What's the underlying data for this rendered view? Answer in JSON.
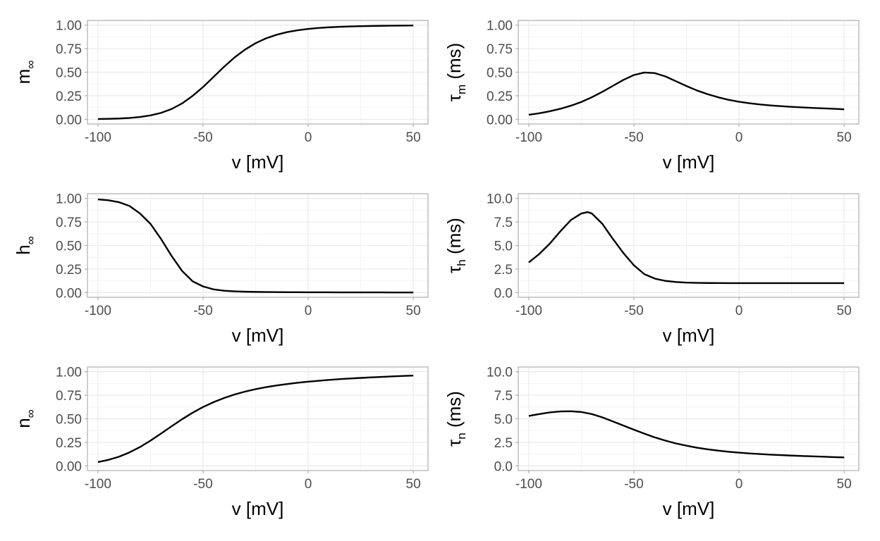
{
  "chart_data": [
    {
      "type": "line",
      "ylabel": {
        "main": "m",
        "sub": "∞",
        "unit": ""
      },
      "xlabel": "v [mV]",
      "xlim": [
        -105,
        57
      ],
      "ylim": [
        -0.05,
        1.05
      ],
      "xticks": [
        -100,
        -50,
        0,
        50
      ],
      "xtick_labels": [
        "-100",
        "-50",
        "0",
        "50"
      ],
      "yticks": [
        0,
        0.25,
        0.5,
        0.75,
        1
      ],
      "ytick_labels": [
        "0.00",
        "0.25",
        "0.50",
        "0.75",
        "1.00"
      ],
      "grid": true,
      "series": [
        {
          "x": [
            -100,
            -95,
            -90,
            -85,
            -80,
            -75,
            -70,
            -65,
            -60,
            -55,
            -50,
            -45,
            -40,
            -35,
            -30,
            -25,
            -20,
            -15,
            -10,
            -5,
            0,
            5,
            10,
            15,
            20,
            25,
            30,
            35,
            40,
            45,
            50
          ],
          "y": [
            0.003,
            0.005,
            0.008,
            0.014,
            0.024,
            0.041,
            0.068,
            0.109,
            0.168,
            0.248,
            0.343,
            0.45,
            0.558,
            0.657,
            0.741,
            0.808,
            0.86,
            0.898,
            0.926,
            0.946,
            0.96,
            0.97,
            0.977,
            0.982,
            0.986,
            0.989,
            0.991,
            0.993,
            0.994,
            0.995,
            0.996
          ]
        }
      ]
    },
    {
      "type": "line",
      "ylabel": {
        "main": "τ",
        "sub": "m",
        "unit": " (ms)"
      },
      "xlabel": "v [mV]",
      "xlim": [
        -105,
        57
      ],
      "ylim": [
        -0.05,
        1.05
      ],
      "xticks": [
        -100,
        -50,
        0,
        50
      ],
      "xtick_labels": [
        "-100",
        "-50",
        "0",
        "50"
      ],
      "yticks": [
        0,
        0.25,
        0.5,
        0.75,
        1
      ],
      "ytick_labels": [
        "0.00",
        "0.25",
        "0.50",
        "0.75",
        "1.00"
      ],
      "grid": true,
      "series": [
        {
          "x": [
            -100,
            -95,
            -90,
            -85,
            -80,
            -75,
            -70,
            -65,
            -60,
            -55,
            -50,
            -45,
            -40,
            -35,
            -30,
            -25,
            -20,
            -15,
            -10,
            -5,
            0,
            5,
            10,
            15,
            20,
            25,
            30,
            35,
            40,
            45,
            50
          ],
          "y": [
            0.048,
            0.064,
            0.085,
            0.111,
            0.144,
            0.184,
            0.234,
            0.292,
            0.355,
            0.418,
            0.47,
            0.497,
            0.49,
            0.455,
            0.404,
            0.353,
            0.306,
            0.267,
            0.234,
            0.207,
            0.186,
            0.17,
            0.157,
            0.147,
            0.139,
            0.132,
            0.126,
            0.121,
            0.116,
            0.111,
            0.106
          ]
        }
      ]
    },
    {
      "type": "line",
      "ylabel": {
        "main": "h",
        "sub": "∞",
        "unit": ""
      },
      "xlabel": "v [mV]",
      "xlim": [
        -105,
        57
      ],
      "ylim": [
        -0.05,
        1.05
      ],
      "xticks": [
        -100,
        -50,
        0,
        50
      ],
      "xtick_labels": [
        "-100",
        "-50",
        "0",
        "50"
      ],
      "yticks": [
        0,
        0.25,
        0.5,
        0.75,
        1
      ],
      "ytick_labels": [
        "0.00",
        "0.25",
        "0.50",
        "0.75",
        "1.00"
      ],
      "grid": true,
      "series": [
        {
          "x": [
            -100,
            -95,
            -90,
            -85,
            -80,
            -75,
            -70,
            -65,
            -60,
            -55,
            -50,
            -45,
            -40,
            -35,
            -30,
            -25,
            -20,
            -15,
            -10,
            -5,
            0,
            5,
            10,
            15,
            20,
            25,
            30,
            35,
            40,
            45,
            50
          ],
          "y": [
            0.99,
            0.98,
            0.96,
            0.92,
            0.84,
            0.73,
            0.57,
            0.39,
            0.23,
            0.12,
            0.065,
            0.034,
            0.02,
            0.013,
            0.009,
            0.007,
            0.006,
            0.005,
            0.004,
            0.004,
            0.003,
            0.003,
            0.003,
            0.002,
            0.002,
            0.002,
            0.002,
            0.002,
            0.001,
            0.001,
            0.001
          ]
        }
      ]
    },
    {
      "type": "line",
      "ylabel": {
        "main": "τ",
        "sub": "h",
        "unit": " (ms)"
      },
      "xlabel": "v [mV]",
      "xlim": [
        -105,
        57
      ],
      "ylim": [
        -0.5,
        10.5
      ],
      "xticks": [
        -100,
        -50,
        0,
        50
      ],
      "xtick_labels": [
        "-100",
        "-50",
        "0",
        "50"
      ],
      "yticks": [
        0,
        2.5,
        5,
        7.5,
        10
      ],
      "ytick_labels": [
        "0.0",
        "2.5",
        "5.0",
        "7.5",
        "10.0"
      ],
      "grid": true,
      "series": [
        {
          "x": [
            -100,
            -95,
            -90,
            -85,
            -80,
            -75,
            -72,
            -70,
            -65,
            -60,
            -55,
            -50,
            -45,
            -40,
            -35,
            -30,
            -25,
            -20,
            -15,
            -10,
            -5,
            0,
            5,
            10,
            15,
            20,
            25,
            30,
            35,
            40,
            45,
            50
          ],
          "y": [
            3.2,
            4.1,
            5.2,
            6.5,
            7.7,
            8.4,
            8.55,
            8.4,
            7.3,
            5.7,
            4.2,
            2.9,
            1.95,
            1.48,
            1.24,
            1.12,
            1.06,
            1.03,
            1.015,
            1.01,
            1.005,
            1.0,
            1.0,
            1.0,
            1.0,
            1.0,
            1.0,
            1.0,
            1.0,
            1.0,
            1.0,
            1.0
          ]
        }
      ]
    },
    {
      "type": "line",
      "ylabel": {
        "main": "n",
        "sub": "∞",
        "unit": ""
      },
      "xlabel": "v [mV]",
      "xlim": [
        -105,
        57
      ],
      "ylim": [
        -0.05,
        1.05
      ],
      "xticks": [
        -100,
        -50,
        0,
        50
      ],
      "xtick_labels": [
        "-100",
        "-50",
        "0",
        "50"
      ],
      "yticks": [
        0,
        0.25,
        0.5,
        0.75,
        1
      ],
      "ytick_labels": [
        "0.00",
        "0.25",
        "0.50",
        "0.75",
        "1.00"
      ],
      "grid": true,
      "series": [
        {
          "x": [
            -100,
            -95,
            -90,
            -85,
            -80,
            -75,
            -70,
            -65,
            -60,
            -55,
            -50,
            -45,
            -40,
            -35,
            -30,
            -25,
            -20,
            -15,
            -10,
            -5,
            0,
            5,
            10,
            15,
            20,
            25,
            30,
            35,
            40,
            45,
            50
          ],
          "y": [
            0.04,
            0.064,
            0.097,
            0.143,
            0.2,
            0.268,
            0.343,
            0.42,
            0.495,
            0.564,
            0.625,
            0.677,
            0.721,
            0.758,
            0.789,
            0.815,
            0.836,
            0.854,
            0.869,
            0.883,
            0.894,
            0.904,
            0.913,
            0.921,
            0.928,
            0.934,
            0.94,
            0.945,
            0.95,
            0.955,
            0.959
          ]
        }
      ]
    },
    {
      "type": "line",
      "ylabel": {
        "main": "τ",
        "sub": "n",
        "unit": " (ms)"
      },
      "xlabel": "v [mV]",
      "xlim": [
        -105,
        57
      ],
      "ylim": [
        -0.5,
        10.5
      ],
      "xticks": [
        -100,
        -50,
        0,
        50
      ],
      "xtick_labels": [
        "-100",
        "-50",
        "0",
        "50"
      ],
      "yticks": [
        0,
        2.5,
        5,
        7.5,
        10
      ],
      "ytick_labels": [
        "0.0",
        "2.5",
        "5.0",
        "7.5",
        "10.0"
      ],
      "grid": true,
      "series": [
        {
          "x": [
            -100,
            -95,
            -90,
            -85,
            -80,
            -75,
            -70,
            -65,
            -60,
            -55,
            -50,
            -45,
            -40,
            -35,
            -30,
            -25,
            -20,
            -15,
            -10,
            -5,
            0,
            5,
            10,
            15,
            20,
            25,
            30,
            35,
            40,
            45,
            50
          ],
          "y": [
            5.3,
            5.5,
            5.68,
            5.78,
            5.8,
            5.72,
            5.5,
            5.15,
            4.72,
            4.28,
            3.84,
            3.42,
            3.02,
            2.68,
            2.38,
            2.14,
            1.93,
            1.76,
            1.62,
            1.5,
            1.4,
            1.32,
            1.25,
            1.19,
            1.14,
            1.09,
            1.05,
            1.01,
            0.97,
            0.93,
            0.9
          ]
        }
      ]
    }
  ],
  "colors": {
    "line": "#000000",
    "grid_major": "#ebebeb",
    "grid_minor": "#f4f4f4",
    "panel_border": "#b3b3b3",
    "tick_text": "#4d4d4d"
  }
}
